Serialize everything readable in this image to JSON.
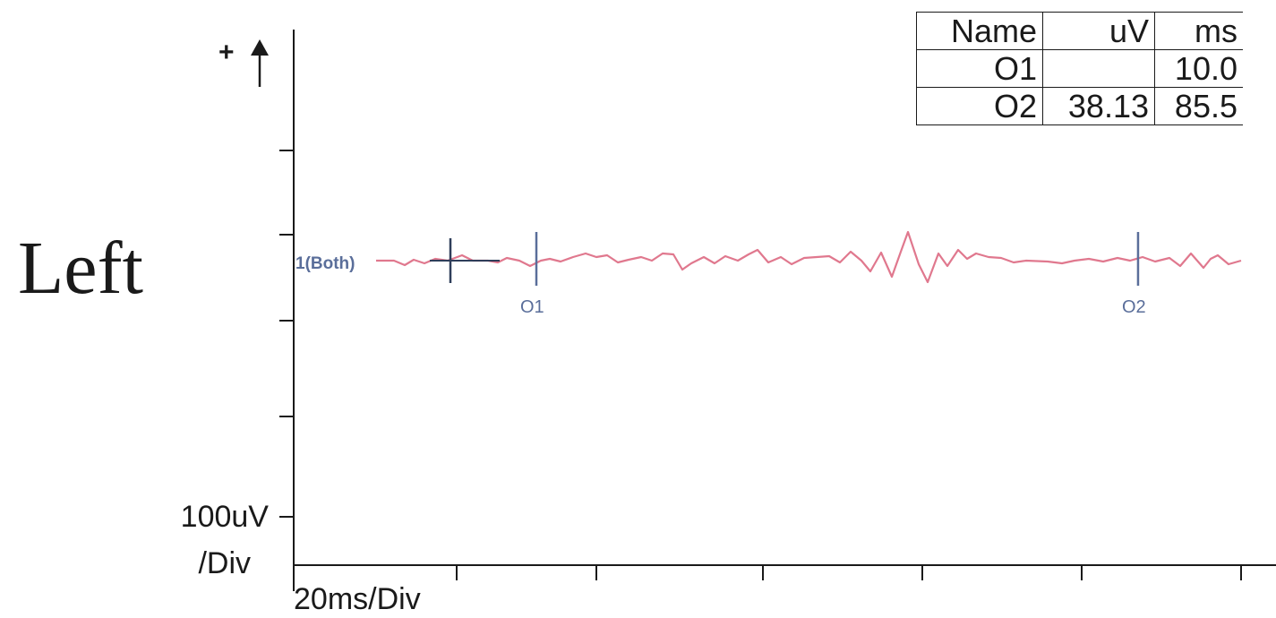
{
  "side_label": "Left",
  "polarity_label": "+",
  "y_scale": {
    "value": "100uV",
    "unit": "/Div"
  },
  "x_scale": "20ms/Div",
  "results_table": {
    "headers": [
      "Name",
      "uV",
      "ms"
    ],
    "rows": [
      [
        "O1",
        "",
        "10.0"
      ],
      [
        "O2",
        "38.13",
        "85.5"
      ]
    ]
  },
  "chart_data": {
    "type": "line",
    "trace_label": "1(Both)",
    "markers": [
      {
        "name": "O1",
        "ms": 10.0
      },
      {
        "name": "O2",
        "ms": 85.5
      }
    ],
    "colors": {
      "trace": "#e0788e",
      "markers": "#5a6e9a",
      "axes": "#1a1a1a"
    }
  }
}
